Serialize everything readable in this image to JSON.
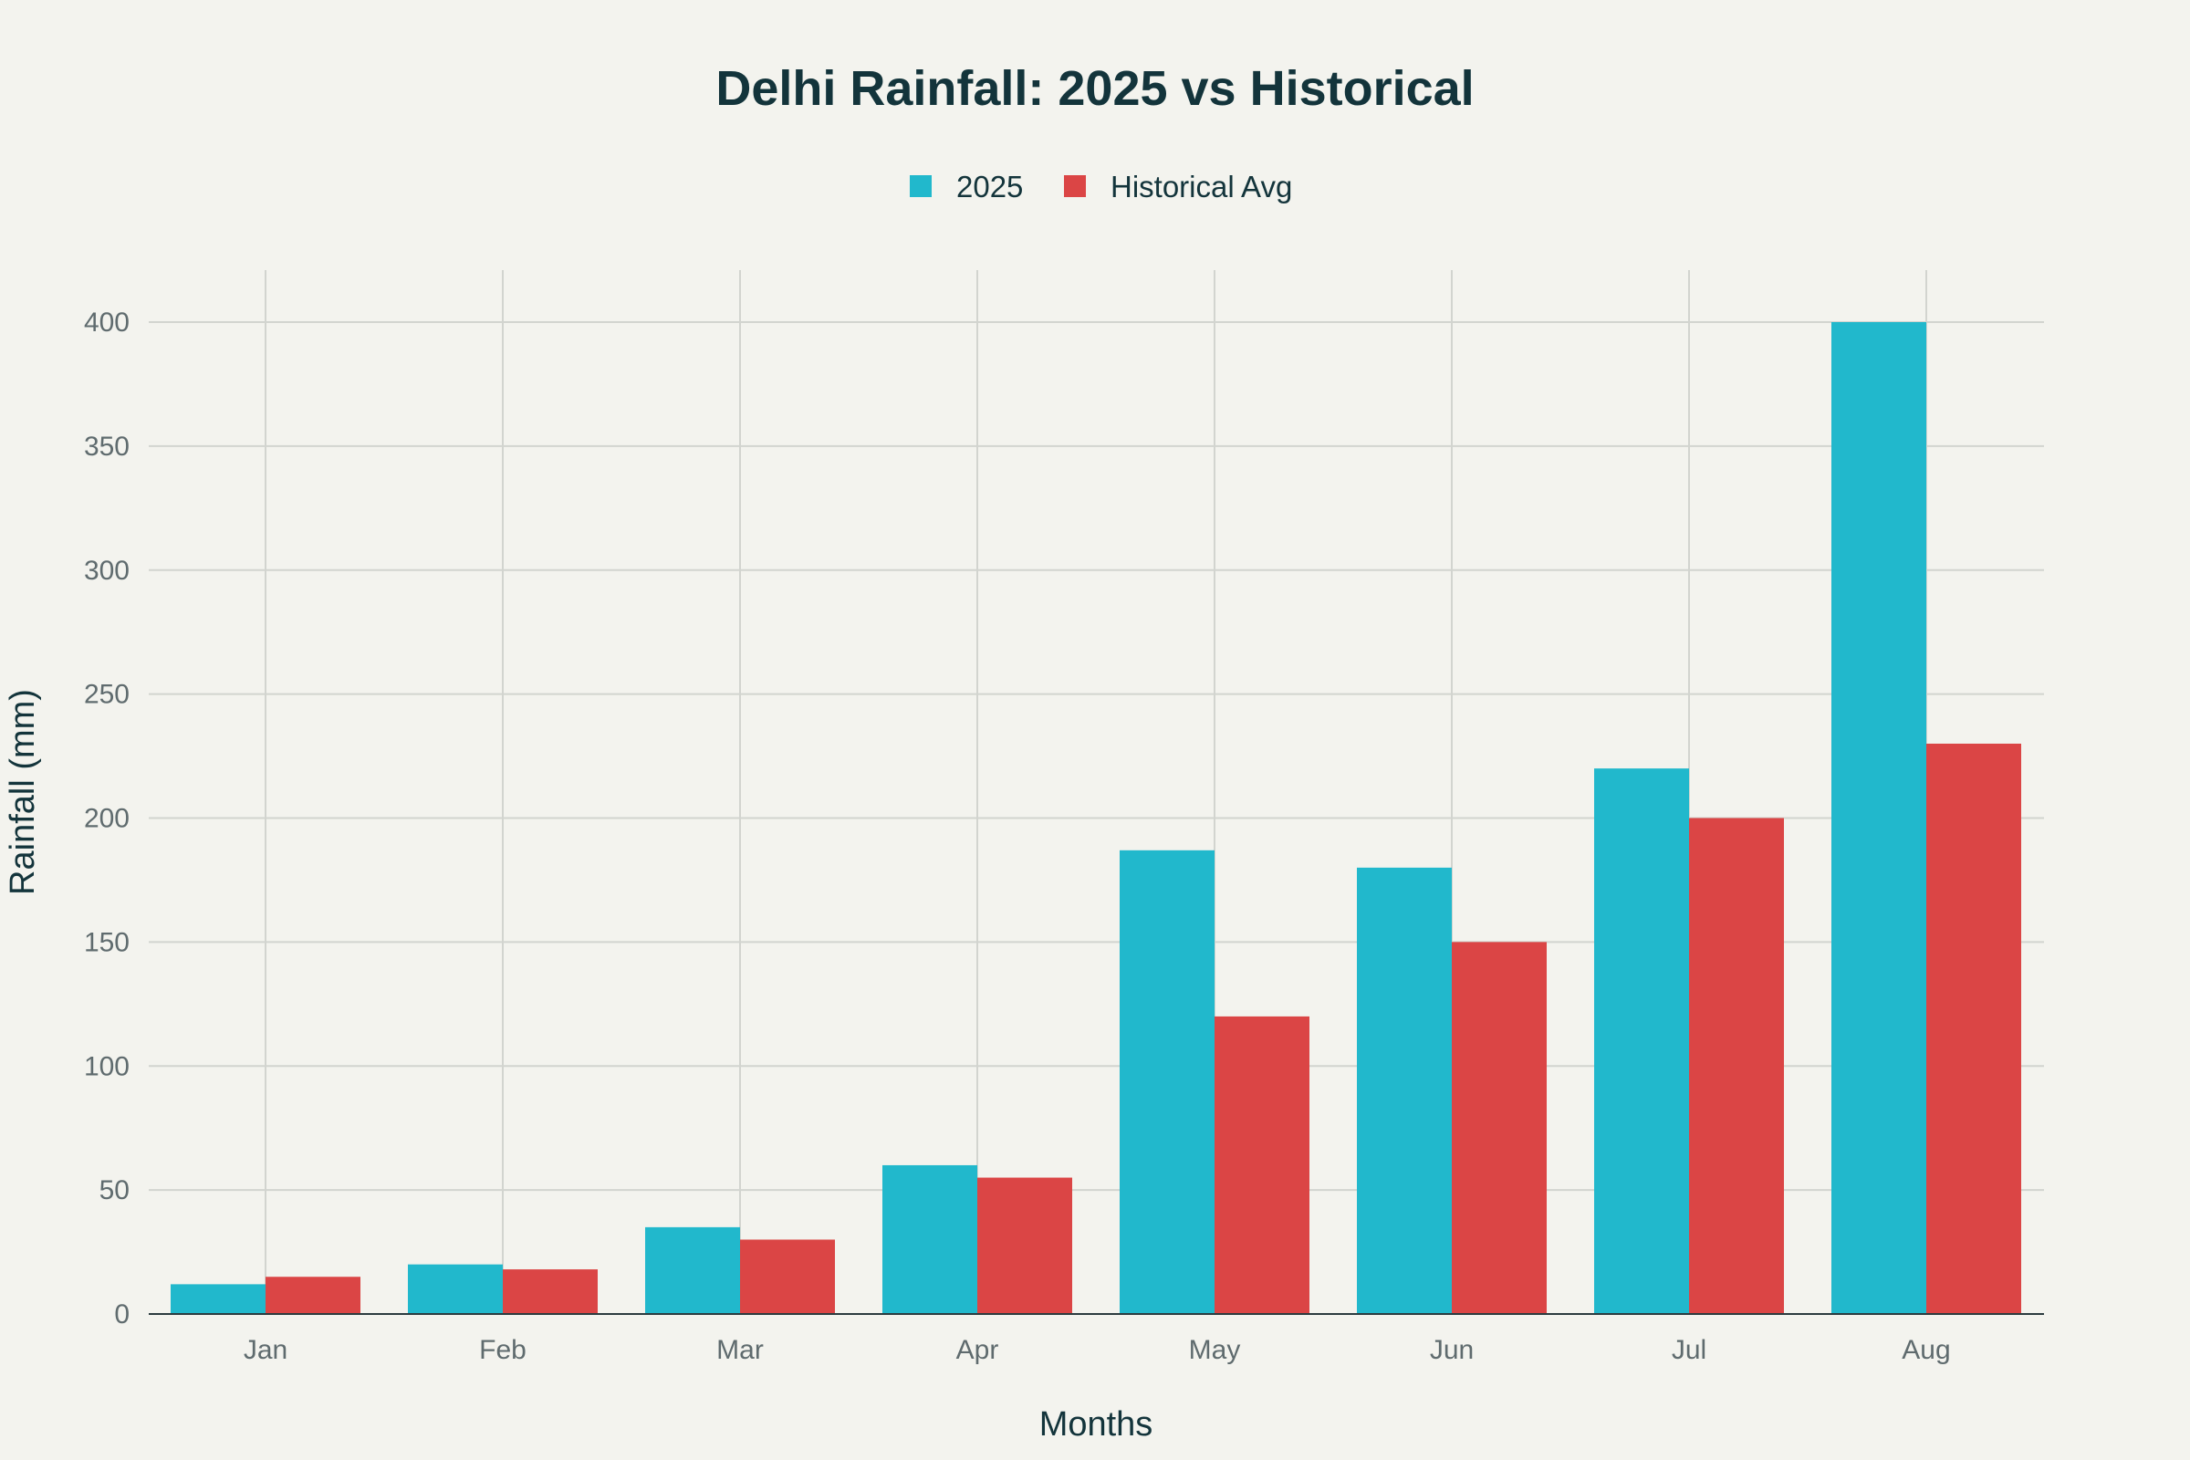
{
  "chart_data": {
    "type": "bar",
    "title": "Delhi Rainfall: 2025 vs Historical",
    "xlabel": "Months",
    "ylabel": "Rainfall (mm)",
    "categories": [
      "Jan",
      "Feb",
      "Mar",
      "Apr",
      "May",
      "Jun",
      "Jul",
      "Aug"
    ],
    "series": [
      {
        "name": "2025",
        "color": "#21b8cc",
        "values": [
          12,
          20,
          35,
          60,
          187,
          180,
          220,
          400
        ]
      },
      {
        "name": "Historical Avg",
        "color": "#db4545",
        "values": [
          15,
          18,
          30,
          55,
          120,
          150,
          200,
          230
        ]
      }
    ],
    "ylim": [
      0,
      420
    ],
    "yticks": [
      0,
      50,
      100,
      150,
      200,
      250,
      300,
      350,
      400
    ],
    "grid": true,
    "legend_position": "top-center"
  }
}
